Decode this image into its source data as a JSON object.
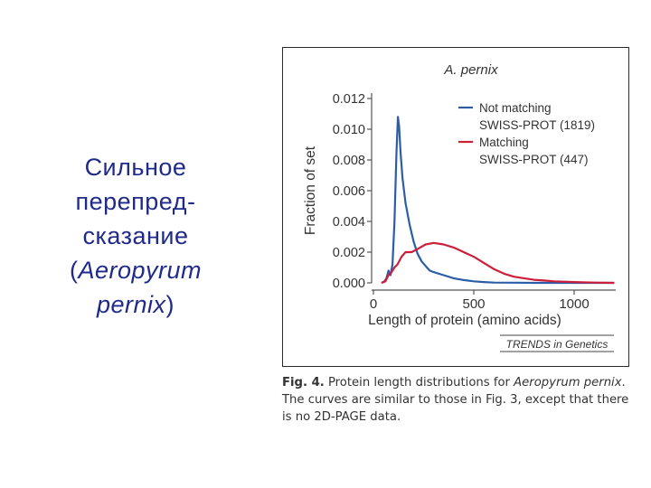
{
  "slide": {
    "title_line1": "Сильное",
    "title_line2": "перепред-",
    "title_line3": "сказание",
    "title_paren_open": "(",
    "title_species1": "Aeropyrum",
    "title_species2": "pernix",
    "title_paren_close": ")",
    "title_color": "#1f2a8a"
  },
  "figure": {
    "credit": "TRENDS in Genetics",
    "caption": {
      "label": "Fig. 4.",
      "text1": " Protein length distributions for ",
      "species1": "Aeropyrum",
      "species2": "pernix",
      "text2": ". The curves are similar to those in Fig. 3, except that there is no 2D-PAGE data."
    }
  },
  "chart_data": {
    "type": "line",
    "title": "A. pernix",
    "xlabel": "Length of protein (amino acids)",
    "ylabel": "Fraction of set",
    "xlim": [
      0,
      1200
    ],
    "ylim": [
      0,
      0.012
    ],
    "x_ticks": [
      0,
      500,
      1000
    ],
    "x_tick_labels": [
      "0",
      "500",
      "1000"
    ],
    "y_ticks": [
      0,
      0.002,
      0.004,
      0.006,
      0.008,
      0.01,
      0.012
    ],
    "y_tick_labels": [
      "0.000",
      "0.002",
      "0.004",
      "0.006",
      "0.008",
      "0.010",
      "0.012"
    ],
    "legend_position": "top-right",
    "grid": false,
    "series": [
      {
        "name": "Not matching SWISS-PROT (1819)",
        "legend_line1": "Not matching",
        "legend_line2": "SWISS-PROT (1819)",
        "color": "#2b5ea7",
        "points": [
          [
            40,
            0
          ],
          [
            55,
            0.0001
          ],
          [
            65,
            0.0003
          ],
          [
            75,
            0.0008
          ],
          [
            85,
            0.0005
          ],
          [
            95,
            0.0012
          ],
          [
            105,
            0.004
          ],
          [
            115,
            0.0085
          ],
          [
            122,
            0.0108
          ],
          [
            128,
            0.0102
          ],
          [
            135,
            0.0085
          ],
          [
            145,
            0.0068
          ],
          [
            160,
            0.0052
          ],
          [
            180,
            0.0038
          ],
          [
            200,
            0.0027
          ],
          [
            220,
            0.0019
          ],
          [
            240,
            0.0014
          ],
          [
            260,
            0.0011
          ],
          [
            280,
            0.0008
          ],
          [
            300,
            0.0007
          ],
          [
            350,
            0.0005
          ],
          [
            400,
            0.0003
          ],
          [
            450,
            0.00018
          ],
          [
            500,
            0.0001
          ],
          [
            550,
            5e-05
          ],
          [
            600,
            2e-05
          ],
          [
            700,
            1e-05
          ],
          [
            800,
            0
          ],
          [
            1200,
            0
          ]
        ]
      },
      {
        "name": "Matching SWISS-PROT (447)",
        "legend_line1": "Matching",
        "legend_line2": "SWISS-PROT (447)",
        "color": "#cc1f3a",
        "points": [
          [
            40,
            0
          ],
          [
            60,
            0.0001
          ],
          [
            75,
            0.0005
          ],
          [
            90,
            0.0007
          ],
          [
            105,
            0.001
          ],
          [
            120,
            0.0012
          ],
          [
            140,
            0.0017
          ],
          [
            160,
            0.002
          ],
          [
            190,
            0.002
          ],
          [
            220,
            0.0022
          ],
          [
            260,
            0.0025
          ],
          [
            300,
            0.0026
          ],
          [
            350,
            0.0025
          ],
          [
            400,
            0.0023
          ],
          [
            450,
            0.002
          ],
          [
            500,
            0.0017
          ],
          [
            550,
            0.0013
          ],
          [
            600,
            0.0009
          ],
          [
            650,
            0.0006
          ],
          [
            700,
            0.0004
          ],
          [
            750,
            0.0003
          ],
          [
            800,
            0.0002
          ],
          [
            850,
            0.00015
          ],
          [
            900,
            0.0001
          ],
          [
            1000,
            5e-05
          ],
          [
            1100,
            2e-05
          ],
          [
            1200,
            0
          ]
        ]
      }
    ]
  }
}
